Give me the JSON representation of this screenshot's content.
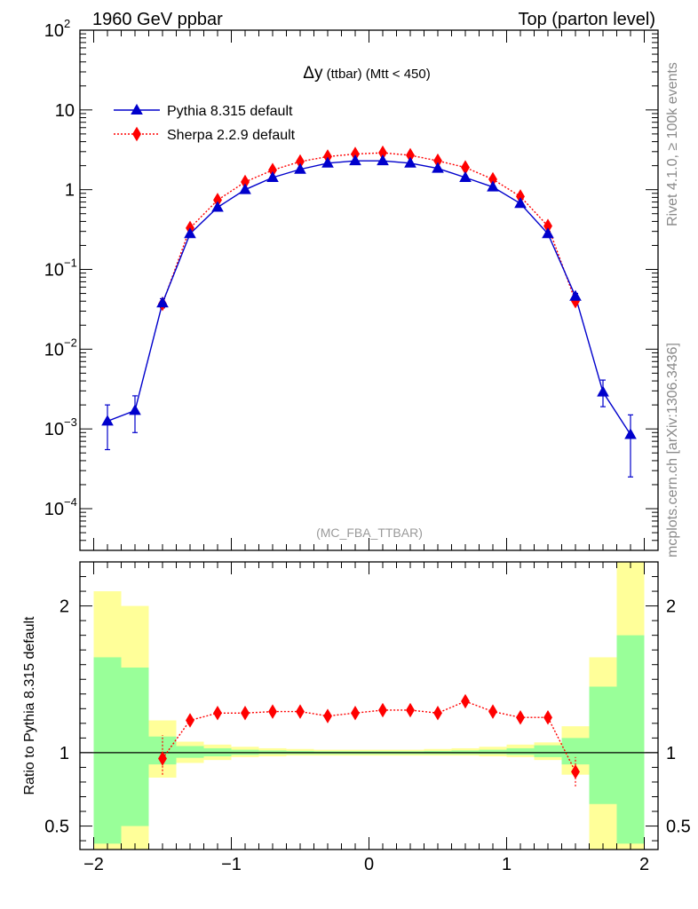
{
  "header": {
    "left": "1960 GeV ppbar",
    "right": "Top (parton level)"
  },
  "side_text": {
    "top": "Rivet 4.1.0, ≥ 100k events",
    "bottom": "mcplots.cern.ch [arXiv:1306.3436]"
  },
  "chart_data": [
    {
      "type": "line",
      "panel": "main",
      "title_main": "Δy",
      "title_rest": " (ttbar) (Mtt < 450)",
      "analysis_label": "(MC_FBA_TTBAR)",
      "xlim": [
        -2.1,
        2.1
      ],
      "ylim": [
        3e-05,
        100
      ],
      "yscale": "log",
      "ytick_labels": [
        {
          "value": 100,
          "base": "10",
          "exp": "2"
        },
        {
          "value": 10,
          "base": "10",
          "exp": ""
        },
        {
          "value": 1,
          "base": "1",
          "exp": ""
        },
        {
          "value": 0.1,
          "base": "10",
          "exp": "−1"
        },
        {
          "value": 0.01,
          "base": "10",
          "exp": "−2"
        },
        {
          "value": 0.001,
          "base": "10",
          "exp": "−3"
        },
        {
          "value": 0.0001,
          "base": "10",
          "exp": "−4"
        }
      ],
      "series": [
        {
          "name": "Pythia 8.315 default",
          "color": "#0000cc",
          "marker": "triangle",
          "line": "solid",
          "x": [
            -1.9,
            -1.7,
            -1.5,
            -1.3,
            -1.1,
            -0.9,
            -0.7,
            -0.5,
            -0.3,
            -0.1,
            0.1,
            0.3,
            0.5,
            0.7,
            0.9,
            1.1,
            1.3,
            1.5,
            1.7,
            1.9
          ],
          "values": [
            0.00125,
            0.0017,
            0.038,
            0.28,
            0.6,
            1.0,
            1.42,
            1.8,
            2.15,
            2.3,
            2.3,
            2.15,
            1.85,
            1.42,
            1.08,
            0.67,
            0.28,
            0.046,
            0.0029,
            0.00085
          ],
          "err_low": [
            0.00055,
            0.0009,
            0.033,
            0.27,
            0.59,
            0.98,
            1.4,
            1.78,
            2.13,
            2.28,
            2.28,
            2.13,
            1.83,
            1.4,
            1.06,
            0.66,
            0.27,
            0.042,
            0.0019,
            0.00025
          ],
          "err_high": [
            0.002,
            0.0026,
            0.043,
            0.29,
            0.61,
            1.02,
            1.44,
            1.82,
            2.17,
            2.32,
            2.32,
            2.17,
            1.87,
            1.44,
            1.1,
            0.68,
            0.29,
            0.05,
            0.0041,
            0.0015
          ]
        },
        {
          "name": "Sherpa 2.2.9 default",
          "color": "#ff0000",
          "marker": "diamond",
          "line": "dotted",
          "x": [
            -1.5,
            -1.3,
            -1.1,
            -0.9,
            -0.7,
            -0.5,
            -0.3,
            -0.1,
            0.1,
            0.3,
            0.5,
            0.7,
            0.9,
            1.1,
            1.3,
            1.5
          ],
          "values": [
            0.037,
            0.33,
            0.74,
            1.25,
            1.76,
            2.25,
            2.6,
            2.8,
            2.9,
            2.7,
            2.3,
            1.9,
            1.35,
            0.82,
            0.35,
            0.04
          ]
        }
      ]
    },
    {
      "type": "line",
      "panel": "ratio",
      "ylabel": "Ratio to Pythia 8.315 default",
      "xlim": [
        -2.1,
        2.1
      ],
      "ylim": [
        0.34,
        2.3
      ],
      "reference": 1.0,
      "xtick_labels": [
        {
          "value": -2,
          "label": "−2"
        },
        {
          "value": -1,
          "label": "−1"
        },
        {
          "value": 0,
          "label": "0"
        },
        {
          "value": 1,
          "label": "1"
        },
        {
          "value": 2,
          "label": "2"
        }
      ],
      "ytick_labels": [
        {
          "value": 2,
          "label": "2"
        },
        {
          "value": 1,
          "label": "1"
        },
        {
          "value": 0.5,
          "label": "0.5"
        }
      ],
      "bands": {
        "x_edges": [
          -2.0,
          -1.8,
          -1.6,
          -1.4,
          -1.2,
          -1.0,
          -0.8,
          -0.6,
          -0.4,
          -0.2,
          0.0,
          0.2,
          0.4,
          0.6,
          0.8,
          1.0,
          1.2,
          1.4,
          1.6,
          1.8,
          2.0
        ],
        "yellow_low": [
          0.34,
          0.34,
          0.83,
          0.93,
          0.95,
          0.97,
          0.975,
          0.98,
          0.98,
          0.98,
          0.98,
          0.98,
          0.98,
          0.98,
          0.975,
          0.97,
          0.95,
          0.85,
          0.34,
          0.34
        ],
        "yellow_high": [
          2.1,
          2.0,
          1.22,
          1.075,
          1.055,
          1.04,
          1.03,
          1.025,
          1.02,
          1.02,
          1.02,
          1.02,
          1.025,
          1.03,
          1.04,
          1.055,
          1.07,
          1.18,
          1.65,
          2.3
        ],
        "green_low": [
          0.38,
          0.5,
          0.92,
          0.965,
          0.975,
          0.985,
          0.99,
          0.99,
          0.99,
          0.99,
          0.99,
          0.99,
          0.99,
          0.99,
          0.99,
          0.985,
          0.97,
          0.92,
          0.65,
          0.38
        ],
        "green_high": [
          1.65,
          1.58,
          1.11,
          1.045,
          1.03,
          1.02,
          1.015,
          1.012,
          1.01,
          1.01,
          1.01,
          1.01,
          1.012,
          1.015,
          1.02,
          1.03,
          1.05,
          1.1,
          1.45,
          1.8
        ]
      },
      "series": [
        {
          "name": "Sherpa 2.2.9 default / Pythia 8.315 default",
          "color": "#ff0000",
          "marker": "diamond",
          "line": "dotted",
          "x": [
            -1.5,
            -1.3,
            -1.1,
            -0.9,
            -0.7,
            -0.5,
            -0.3,
            -0.1,
            0.1,
            0.3,
            0.5,
            0.7,
            0.9,
            1.1,
            1.3,
            1.5
          ],
          "values": [
            0.96,
            1.22,
            1.27,
            1.27,
            1.28,
            1.28,
            1.25,
            1.27,
            1.29,
            1.29,
            1.27,
            1.35,
            1.28,
            1.24,
            1.24,
            0.87
          ],
          "err_low": [
            0.85,
            1.19,
            1.26,
            1.26,
            1.27,
            1.27,
            1.24,
            1.26,
            1.28,
            1.28,
            1.26,
            1.33,
            1.27,
            1.23,
            1.2,
            0.77
          ],
          "err_high": [
            1.12,
            1.25,
            1.28,
            1.28,
            1.29,
            1.29,
            1.26,
            1.28,
            1.3,
            1.3,
            1.28,
            1.37,
            1.29,
            1.25,
            1.29,
            0.97
          ]
        }
      ]
    }
  ]
}
